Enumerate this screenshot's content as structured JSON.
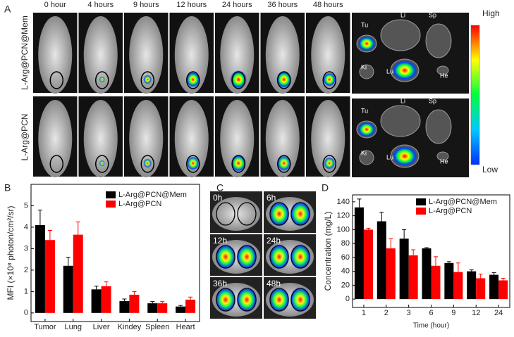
{
  "panel_labels": [
    "A",
    "B",
    "C",
    "D"
  ],
  "panel_a": {
    "times": [
      "0 hour",
      "4 hours",
      "9 hours",
      "12 hours",
      "24 hours",
      "36 hours",
      "48 hours"
    ],
    "rows": [
      "L-Arg@PCN@Mem",
      "L-Arg@PCN"
    ],
    "organs": [
      "Tu",
      "Li",
      "Sp",
      "Ki",
      "Lu",
      "He"
    ],
    "colorbar": {
      "high": "High",
      "low": "Low"
    }
  },
  "panel_c": {
    "times": [
      "0h",
      "6h",
      "12h",
      "24h",
      "36h",
      "48h"
    ]
  },
  "chart_data": [
    {
      "type": "bar",
      "ylabel": "MFI (×10⁸ photon/cm²/sr)",
      "categories": [
        "Tumor",
        "Lung",
        "Liver",
        "Kindey",
        "Spleen",
        "Heart"
      ],
      "series": [
        {
          "name": "L-Arg@PCN@Mem",
          "color": "#000000",
          "values": [
            4.1,
            2.2,
            1.1,
            0.55,
            0.45,
            0.3
          ],
          "errors": [
            0.7,
            0.4,
            0.15,
            0.1,
            0.08,
            0.05
          ]
        },
        {
          "name": "L-Arg@PCN",
          "color": "#ff0000",
          "values": [
            3.4,
            3.65,
            1.25,
            0.85,
            0.45,
            0.62
          ],
          "errors": [
            0.45,
            0.6,
            0.2,
            0.15,
            0.08,
            0.12
          ]
        }
      ],
      "ylim": [
        -0.4,
        6
      ],
      "yticks": [
        0,
        1,
        2,
        3,
        4,
        5
      ],
      "legend": "upper right"
    },
    {
      "type": "bar",
      "xlabel": "Time (hour)",
      "ylabel": "Concentration (mg/L)",
      "categories": [
        "1",
        "2",
        "3",
        "6",
        "9",
        "12",
        "24"
      ],
      "series": [
        {
          "name": "L-Arg@PCN@Mem",
          "color": "#000000",
          "values": [
            132,
            112,
            87,
            73,
            52,
            40,
            35
          ],
          "errors": [
            12,
            13,
            13,
            1,
            2,
            2,
            3
          ]
        },
        {
          "name": "L-Arg@PCN",
          "color": "#ff0000",
          "values": [
            100,
            73,
            63,
            48,
            39,
            30,
            27
          ],
          "errors": [
            2,
            14,
            8,
            13,
            13,
            6,
            3
          ]
        }
      ],
      "ylim": [
        -12,
        150
      ],
      "yticks": [
        0,
        20,
        40,
        60,
        80,
        100,
        120,
        140
      ],
      "legend": "upper right"
    }
  ]
}
